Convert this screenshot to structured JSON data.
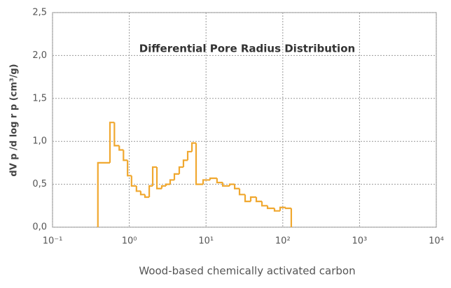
{
  "chart_data": {
    "type": "step",
    "title": "Differential Pore Radius Distribution",
    "ylabel": "dV p /d log r p (cm³/g)",
    "xlabel": "Wood-based chemically activated carbon",
    "log_x": true,
    "grid": true,
    "color": "#f0a830",
    "x": [
      0.39,
      0.56,
      0.64,
      0.74,
      0.84,
      0.95,
      1.07,
      1.24,
      1.41,
      1.6,
      1.82,
      2.02,
      2.29,
      2.65,
      3.01,
      3.41,
      3.87,
      4.48,
      5.08,
      5.77,
      6.55,
      7.42,
      9.16,
      11.3,
      13.9,
      16.5,
      20.3,
      23.6,
      27.3,
      32.3,
      38.2,
      45.2,
      53.5,
      63.3,
      78,
      92.3,
      109,
      129
    ],
    "values": [
      0.75,
      1.22,
      0.95,
      0.9,
      0.78,
      0.6,
      0.48,
      0.42,
      0.38,
      0.35,
      0.48,
      0.7,
      0.45,
      0.48,
      0.5,
      0.55,
      0.62,
      0.7,
      0.78,
      0.88,
      0.98,
      0.5,
      0.55,
      0.57,
      0.52,
      0.48,
      0.5,
      0.45,
      0.38,
      0.3,
      0.35,
      0.3,
      0.25,
      0.22,
      0.19,
      0.23,
      0.22,
      0
    ],
    "xlim": [
      0.1,
      10000
    ],
    "xticks": [
      {
        "value": 0.1,
        "label": "10⁻¹"
      },
      {
        "value": 1,
        "label": "10⁰"
      },
      {
        "value": 10,
        "label": "10¹"
      },
      {
        "value": 100,
        "label": "10²"
      },
      {
        "value": 1000,
        "label": "10³"
      },
      {
        "value": 10000,
        "label": "10⁴"
      }
    ],
    "ylim": [
      0,
      2.5
    ],
    "yticks": [
      {
        "value": 0,
        "label": "0,0"
      },
      {
        "value": 0.5,
        "label": "0,5"
      },
      {
        "value": 1,
        "label": "1,0"
      },
      {
        "value": 1.5,
        "label": "1,5"
      },
      {
        "value": 2,
        "label": "2,0"
      },
      {
        "value": 2.5,
        "label": "2,5"
      }
    ]
  }
}
